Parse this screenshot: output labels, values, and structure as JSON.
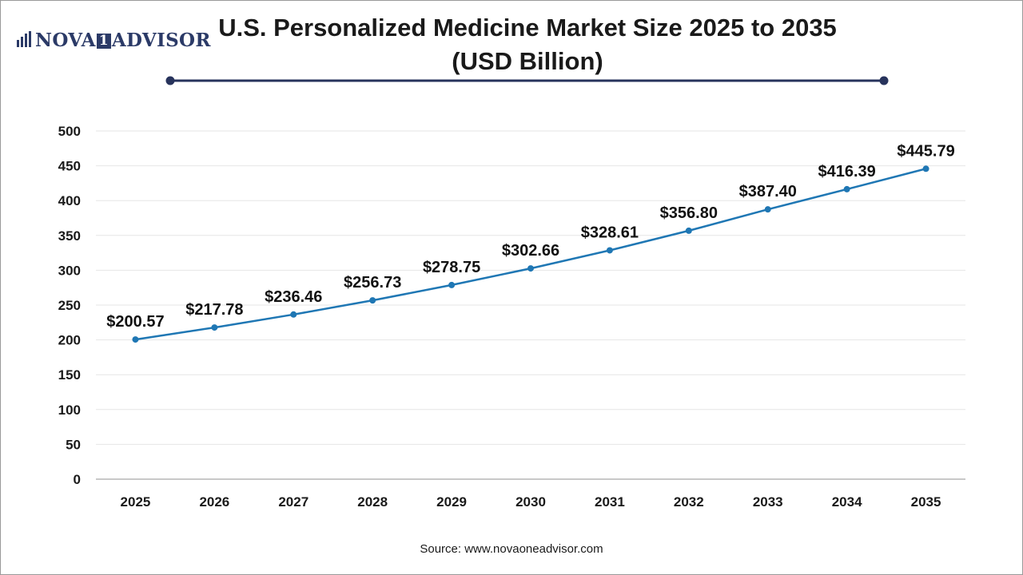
{
  "logo": {
    "part1": "NOVA",
    "part2": "1",
    "part3": "ADVISOR"
  },
  "title": {
    "line1": "U.S. Personalized Medicine Market Size 2025 to 2035",
    "line2": "(USD Billion)"
  },
  "source": "Source: www.novaoneadvisor.com",
  "colors": {
    "line": "#1f77b4",
    "marker": "#1f77b4",
    "rule": "#27335c",
    "grid": "#e6e6e6"
  },
  "chart_data": {
    "type": "line",
    "title": "U.S. Personalized Medicine Market Size 2025 to 2035 (USD Billion)",
    "xlabel": "",
    "ylabel": "",
    "categories": [
      "2025",
      "2026",
      "2027",
      "2028",
      "2029",
      "2030",
      "2031",
      "2032",
      "2033",
      "2034",
      "2035"
    ],
    "values": [
      200.57,
      217.78,
      236.46,
      256.73,
      278.75,
      302.66,
      328.61,
      356.8,
      387.4,
      416.39,
      445.79
    ],
    "data_labels": [
      "$200.57",
      "$217.78",
      "$236.46",
      "$256.73",
      "$278.75",
      "$302.66",
      "$328.61",
      "$356.80",
      "$387.40",
      "$416.39",
      "$445.79"
    ],
    "yticks": [
      0,
      50,
      100,
      150,
      200,
      250,
      300,
      350,
      400,
      450,
      500
    ],
    "ylim": [
      0,
      500
    ],
    "grid": true,
    "legend": "none"
  }
}
